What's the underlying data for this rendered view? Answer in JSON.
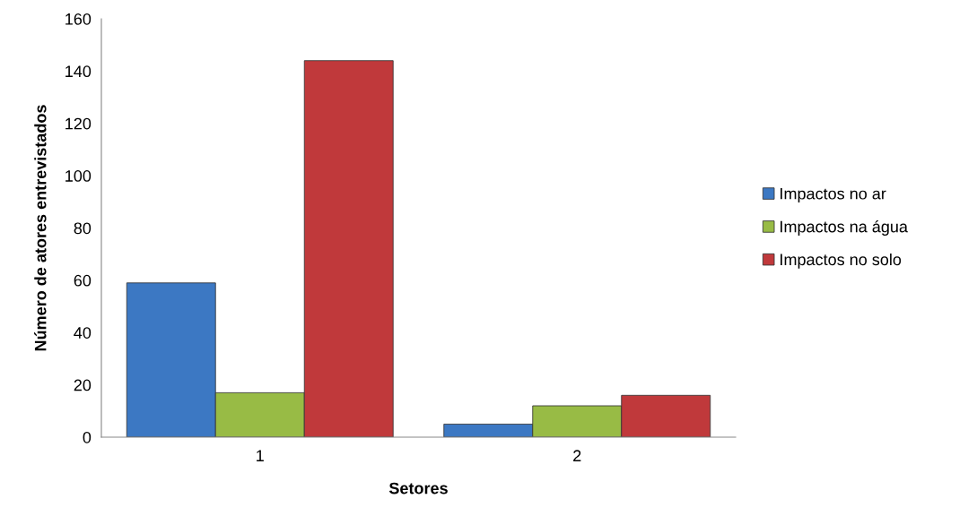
{
  "chart_data": {
    "type": "bar",
    "xlabel": "Setores",
    "ylabel": "Número de atores entrevistados",
    "categories": [
      "1",
      "2"
    ],
    "series": [
      {
        "name": "Impactos no ar",
        "color": "#3c78c3",
        "values": [
          59,
          5
        ]
      },
      {
        "name": "Impactos na água",
        "color": "#98bb45",
        "values": [
          17,
          12
        ]
      },
      {
        "name": "Impactos no solo",
        "color": "#c0393b",
        "values": [
          144,
          16
        ]
      }
    ],
    "ylim": [
      0,
      160
    ],
    "yticks": [
      0,
      20,
      40,
      60,
      80,
      100,
      120,
      140,
      160
    ],
    "grid": false,
    "legend": "right"
  }
}
